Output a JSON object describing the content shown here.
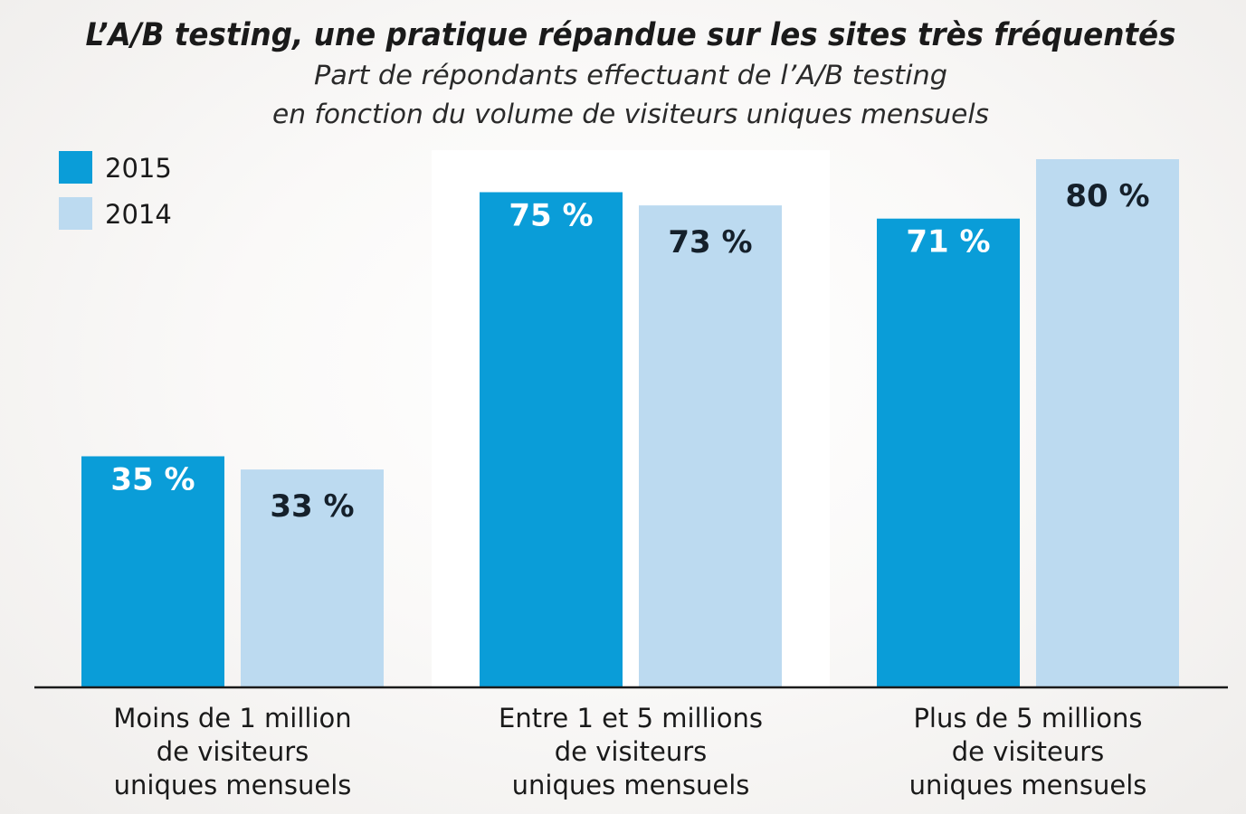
{
  "colors": {
    "series_2015": "#0a9dd8",
    "series_2014": "#bcdaf0",
    "label_on_dark": "#ffffff",
    "label_on_light": "#15202b",
    "highlight_panel": "#ffffff",
    "baseline": "#1a1a1a"
  },
  "chart_data": {
    "type": "bar",
    "title": "L’A/B testing, une pratique répandue sur les sites très fréquentés",
    "subtitle": [
      "Part de répondants effectuant de l’A/B testing",
      "en fonction du volume de visiteurs uniques mensuels"
    ],
    "categories": [
      [
        "Moins de 1 million",
        "de visiteurs",
        "uniques mensuels"
      ],
      [
        "Entre 1 et 5 millions",
        "de visiteurs",
        "uniques mensuels"
      ],
      [
        "Plus de 5 millions",
        "de visiteurs",
        "uniques mensuels"
      ]
    ],
    "series": [
      {
        "name": "2015",
        "values": [
          35,
          75,
          71
        ],
        "labels": [
          "35 %",
          "75 %",
          "71 %"
        ]
      },
      {
        "name": "2014",
        "values": [
          33,
          73,
          80
        ],
        "labels": [
          "33 %",
          "73 %",
          "80 %"
        ]
      }
    ],
    "highlighted_category": 1,
    "ylim": [
      0,
      100
    ],
    "xlabel": "",
    "ylabel": "",
    "grid": false,
    "legend": "top-left"
  }
}
